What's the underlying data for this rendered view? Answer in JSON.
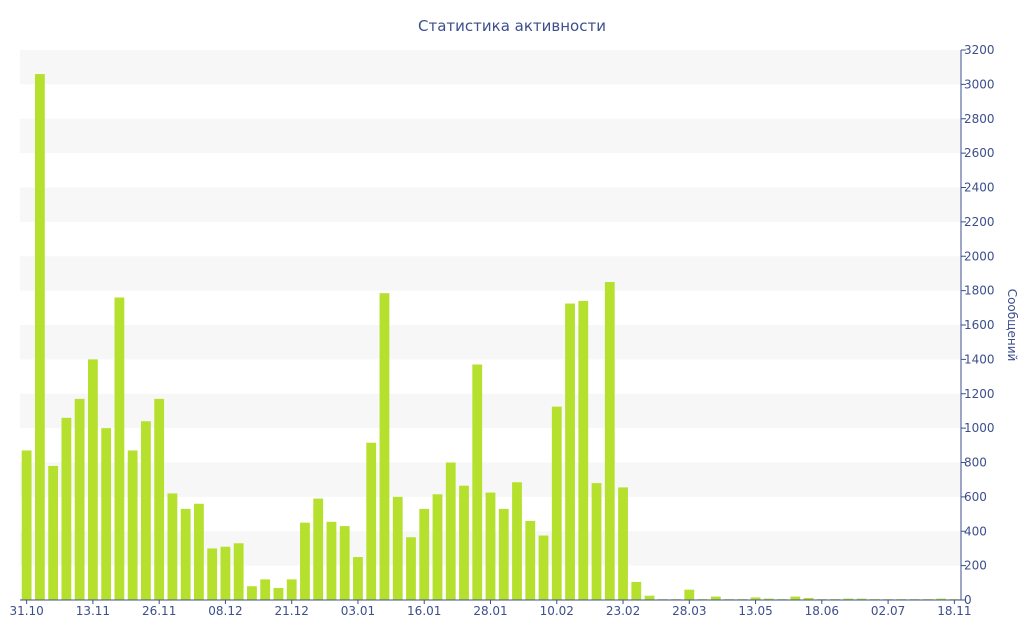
{
  "chart_data": {
    "type": "bar",
    "title": "Статистика активности",
    "xlabel": "",
    "ylabel": "Сообщений",
    "ylim": [
      0,
      3200
    ],
    "y_ticks": [
      0,
      200,
      400,
      600,
      800,
      1000,
      1200,
      1400,
      1600,
      1800,
      2000,
      2200,
      2400,
      2600,
      2800,
      3000,
      3200
    ],
    "y_axis_side": "right",
    "grid": "alternating horizontal bands",
    "legend": "none",
    "bar_color": "#b5e02e",
    "band_color": "#f7f7f7",
    "text_color": "#3d4f8c",
    "x_tick_labels": [
      {
        "index": 0,
        "label": "31.10"
      },
      {
        "index": 5,
        "label": "13.11"
      },
      {
        "index": 10,
        "label": "26.11"
      },
      {
        "index": 15,
        "label": "08.12"
      },
      {
        "index": 20,
        "label": "21.12"
      },
      {
        "index": 25,
        "label": "03.01"
      },
      {
        "index": 30,
        "label": "16.01"
      },
      {
        "index": 35,
        "label": "28.01"
      },
      {
        "index": 40,
        "label": "10.02"
      },
      {
        "index": 45,
        "label": "23.02"
      },
      {
        "index": 50,
        "label": "28.03"
      },
      {
        "index": 55,
        "label": "13.05"
      },
      {
        "index": 60,
        "label": "18.06"
      },
      {
        "index": 65,
        "label": "02.07"
      },
      {
        "index": 70,
        "label": "18.11"
      }
    ],
    "values": [
      870,
      3060,
      780,
      1060,
      1170,
      1400,
      1000,
      1760,
      870,
      1040,
      1170,
      620,
      530,
      560,
      300,
      310,
      330,
      80,
      120,
      70,
      120,
      450,
      590,
      455,
      430,
      250,
      915,
      1785,
      600,
      365,
      530,
      615,
      800,
      665,
      1370,
      625,
      530,
      685,
      460,
      375,
      1125,
      1725,
      1740,
      680,
      1850,
      655,
      105,
      25,
      5,
      5,
      60,
      5,
      20,
      5,
      5,
      15,
      8,
      5,
      20,
      12,
      5,
      5,
      8,
      8,
      5,
      5,
      5,
      5,
      5,
      8,
      5
    ]
  }
}
